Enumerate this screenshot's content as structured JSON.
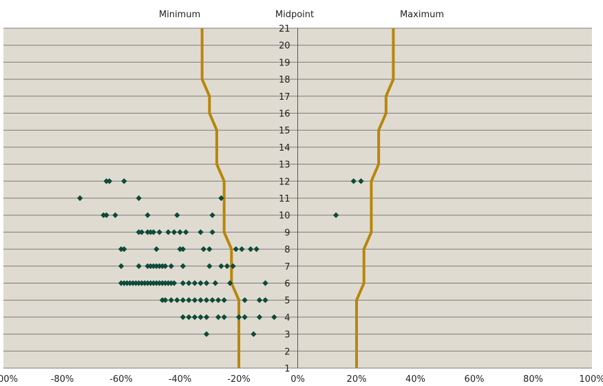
{
  "chart_data": {
    "type": "scatter",
    "headers": {
      "minimum": "Minimum",
      "midpoint": "Midpoint",
      "maximum": "Maximum"
    },
    "x_ticks": [
      "-100%",
      "-80%",
      "-60%",
      "-40%",
      "-20%",
      "0%",
      "20%",
      "40%",
      "60%",
      "80%",
      "100%"
    ],
    "xlim": [
      -1.0,
      1.0
    ],
    "y_ticks": [
      1,
      2,
      3,
      4,
      5,
      6,
      7,
      8,
      9,
      10,
      11,
      12,
      13,
      14,
      15,
      16,
      17,
      18,
      19,
      20,
      21
    ],
    "ylim": [
      1,
      21
    ],
    "grid": "horizontal",
    "colors": {
      "plot_bg": "#e0dbd0",
      "grid": "#7a7a7a",
      "line": "#b8860b",
      "marker": "#0d4a3a"
    },
    "series": [
      {
        "kind": "line",
        "points": [
          [
            -0.2,
            1
          ],
          [
            -0.2,
            5
          ],
          [
            -0.225,
            6
          ],
          [
            -0.225,
            8
          ],
          [
            -0.25,
            9
          ],
          [
            -0.25,
            12
          ],
          [
            -0.275,
            13
          ],
          [
            -0.275,
            15
          ],
          [
            -0.3,
            16
          ],
          [
            -0.3,
            17
          ],
          [
            -0.325,
            18
          ],
          [
            -0.325,
            21
          ]
        ]
      },
      {
        "kind": "line",
        "points": [
          [
            0.2,
            1
          ],
          [
            0.2,
            5
          ],
          [
            0.225,
            6
          ],
          [
            0.225,
            8
          ],
          [
            0.25,
            9
          ],
          [
            0.25,
            12
          ],
          [
            0.275,
            13
          ],
          [
            0.275,
            15
          ],
          [
            0.3,
            16
          ],
          [
            0.3,
            17
          ],
          [
            0.325,
            18
          ],
          [
            0.325,
            21
          ]
        ]
      },
      {
        "kind": "scatter",
        "points": [
          [
            -0.31,
            3
          ],
          [
            -0.15,
            3
          ],
          [
            -0.39,
            4
          ],
          [
            -0.37,
            4
          ],
          [
            -0.35,
            4
          ],
          [
            -0.33,
            4
          ],
          [
            -0.31,
            4
          ],
          [
            -0.27,
            4
          ],
          [
            -0.25,
            4
          ],
          [
            -0.2,
            4
          ],
          [
            -0.18,
            4
          ],
          [
            -0.13,
            4
          ],
          [
            -0.08,
            4
          ],
          [
            -0.46,
            5
          ],
          [
            -0.45,
            5
          ],
          [
            -0.43,
            5
          ],
          [
            -0.41,
            5
          ],
          [
            -0.39,
            5
          ],
          [
            -0.37,
            5
          ],
          [
            -0.35,
            5
          ],
          [
            -0.33,
            5
          ],
          [
            -0.31,
            5
          ],
          [
            -0.29,
            5
          ],
          [
            -0.27,
            5
          ],
          [
            -0.25,
            5
          ],
          [
            -0.18,
            5
          ],
          [
            -0.13,
            5
          ],
          [
            -0.11,
            5
          ],
          [
            -0.6,
            6
          ],
          [
            -0.59,
            6
          ],
          [
            -0.58,
            6
          ],
          [
            -0.57,
            6
          ],
          [
            -0.56,
            6
          ],
          [
            -0.55,
            6
          ],
          [
            -0.54,
            6
          ],
          [
            -0.53,
            6
          ],
          [
            -0.52,
            6
          ],
          [
            -0.51,
            6
          ],
          [
            -0.5,
            6
          ],
          [
            -0.49,
            6
          ],
          [
            -0.48,
            6
          ],
          [
            -0.47,
            6
          ],
          [
            -0.46,
            6
          ],
          [
            -0.45,
            6
          ],
          [
            -0.44,
            6
          ],
          [
            -0.43,
            6
          ],
          [
            -0.42,
            6
          ],
          [
            -0.39,
            6
          ],
          [
            -0.37,
            6
          ],
          [
            -0.35,
            6
          ],
          [
            -0.33,
            6
          ],
          [
            -0.31,
            6
          ],
          [
            -0.28,
            6
          ],
          [
            -0.23,
            6
          ],
          [
            -0.11,
            6
          ],
          [
            -0.6,
            7
          ],
          [
            -0.54,
            7
          ],
          [
            -0.51,
            7
          ],
          [
            -0.5,
            7
          ],
          [
            -0.49,
            7
          ],
          [
            -0.48,
            7
          ],
          [
            -0.47,
            7
          ],
          [
            -0.46,
            7
          ],
          [
            -0.45,
            7
          ],
          [
            -0.43,
            7
          ],
          [
            -0.39,
            7
          ],
          [
            -0.3,
            7
          ],
          [
            -0.26,
            7
          ],
          [
            -0.24,
            7
          ],
          [
            -0.22,
            7
          ],
          [
            -0.6,
            8
          ],
          [
            -0.59,
            8
          ],
          [
            -0.48,
            8
          ],
          [
            -0.4,
            8
          ],
          [
            -0.39,
            8
          ],
          [
            -0.32,
            8
          ],
          [
            -0.3,
            8
          ],
          [
            -0.21,
            8
          ],
          [
            -0.19,
            8
          ],
          [
            -0.16,
            8
          ],
          [
            -0.14,
            8
          ],
          [
            -0.54,
            9
          ],
          [
            -0.53,
            9
          ],
          [
            -0.51,
            9
          ],
          [
            -0.5,
            9
          ],
          [
            -0.49,
            9
          ],
          [
            -0.47,
            9
          ],
          [
            -0.44,
            9
          ],
          [
            -0.42,
            9
          ],
          [
            -0.4,
            9
          ],
          [
            -0.38,
            9
          ],
          [
            -0.33,
            9
          ],
          [
            -0.29,
            9
          ],
          [
            -0.66,
            10
          ],
          [
            -0.65,
            10
          ],
          [
            -0.62,
            10
          ],
          [
            -0.51,
            10
          ],
          [
            -0.41,
            10
          ],
          [
            -0.29,
            10
          ],
          [
            0.13,
            10
          ],
          [
            -0.74,
            11
          ],
          [
            -0.54,
            11
          ],
          [
            -0.26,
            11
          ],
          [
            -0.65,
            12
          ],
          [
            -0.64,
            12
          ],
          [
            -0.59,
            12
          ],
          [
            0.19,
            12
          ],
          [
            0.215,
            12
          ]
        ]
      }
    ]
  }
}
